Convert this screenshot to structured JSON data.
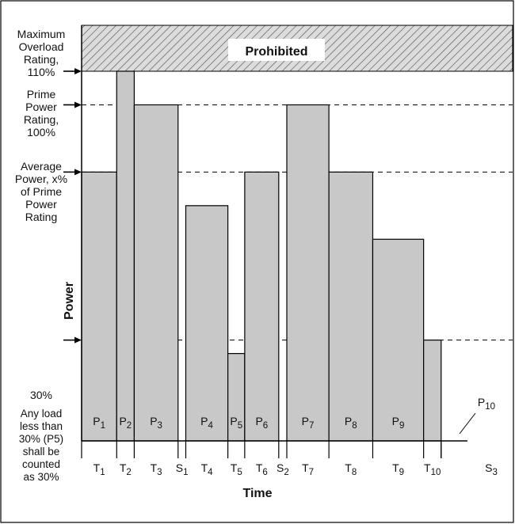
{
  "chart_data": {
    "type": "bar",
    "xlabel": "Time",
    "ylabel": "Power",
    "prohibited_label": "Prohibited",
    "colors": {
      "bar_fill": "#c8c8c8",
      "stroke": "#000000",
      "hatch_bg": "#dcdcdc"
    },
    "ref_lines": [
      {
        "id": "max",
        "value": 110,
        "lines": [
          "Maximum",
          "Overload",
          "Rating,",
          "110%"
        ]
      },
      {
        "id": "prime",
        "value": 100,
        "lines": [
          "Prime",
          "Power",
          "Rating,",
          "100%"
        ]
      },
      {
        "id": "avg",
        "value": 80,
        "lines": [
          "Average",
          "Power, x%",
          "of Prime",
          "Power",
          "Rating"
        ]
      },
      {
        "id": "thirty",
        "value": 30,
        "lines": [
          "30%"
        ]
      }
    ],
    "note_lines": [
      "Any load",
      "less than",
      "30% (P5)",
      "shall be",
      "counted",
      "as 30%"
    ],
    "bars": [
      {
        "p": "1",
        "t": "1",
        "start": 0,
        "end": 1.0,
        "value": 80
      },
      {
        "p": "2",
        "t": "2",
        "start": 1.0,
        "end": 1.5,
        "value": 110
      },
      {
        "p": "3",
        "t": "3",
        "start": 1.5,
        "end": 2.75,
        "value": 100
      },
      {
        "p": "4",
        "t": "4",
        "start": 2.97,
        "end": 4.17,
        "value": 70
      },
      {
        "p": "5",
        "t": "5",
        "start": 4.17,
        "end": 4.65,
        "value": 26
      },
      {
        "p": "6",
        "t": "6",
        "start": 4.65,
        "end": 5.62,
        "value": 80
      },
      {
        "p": "7",
        "t": "7",
        "start": 5.85,
        "end": 7.05,
        "value": 100
      },
      {
        "p": "8",
        "t": "8",
        "start": 7.05,
        "end": 8.3,
        "value": 80
      },
      {
        "p": "9",
        "t": "9",
        "start": 8.3,
        "end": 9.75,
        "value": 60
      },
      {
        "p": "10",
        "t": "10",
        "start": 9.75,
        "end": 10.25,
        "value": 30
      }
    ],
    "stops": [
      {
        "s": "1",
        "start": 2.75,
        "end": 2.97
      },
      {
        "s": "2",
        "start": 5.62,
        "end": 5.85
      },
      {
        "s": "3",
        "start": 10.25,
        "end": 11.0
      }
    ],
    "xlim": [
      0,
      11.0
    ],
    "ylim": [
      0,
      110
    ]
  }
}
